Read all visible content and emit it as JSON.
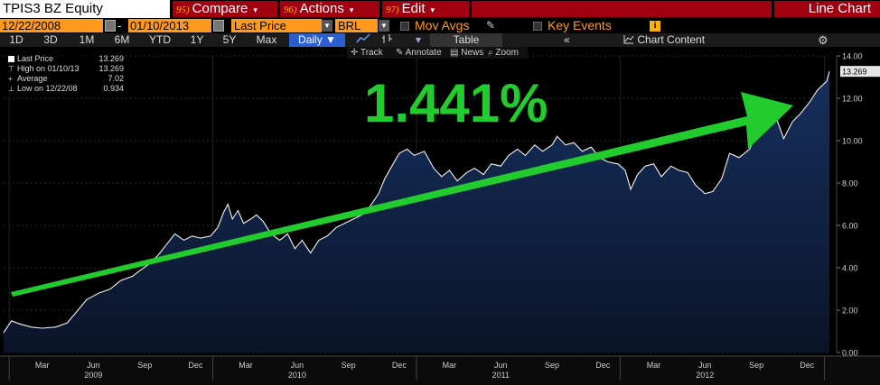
{
  "header": {
    "ticker": "TPIS3 BZ Equity",
    "menus": [
      {
        "num": "95)",
        "label": "Compare",
        "caret": "▾"
      },
      {
        "num": "96)",
        "label": "Actions",
        "caret": "▾"
      },
      {
        "num": "97)",
        "label": "Edit",
        "caret": "▾"
      }
    ],
    "view_title": "Line Chart"
  },
  "controls": {
    "start_date": "12/22/2008",
    "end_date": "01/10/2013",
    "date_separator": "-",
    "field": "Last Price",
    "currency": "BRL",
    "mov_avgs": "Mov Avgs",
    "key_events": "Key Events"
  },
  "toolbar": {
    "timeframes": [
      "1D",
      "3D",
      "1M",
      "6M",
      "YTD",
      "1Y",
      "5Y",
      "Max"
    ],
    "frequency": "Daily",
    "table_label": "Table",
    "chart_content_label": "Chart Content"
  },
  "chart_tools": [
    "Track",
    "Annotate",
    "News",
    "Zoom"
  ],
  "legend": [
    {
      "label": "Last Price",
      "value": "13.269"
    },
    {
      "label": "High on 01/10/13",
      "value": "13.269"
    },
    {
      "label": "Average",
      "value": "7.02"
    },
    {
      "label": "Low on 12/22/08",
      "value": "0.934"
    }
  ],
  "colors": {
    "line": "#f2f2f2",
    "area_top": "#16305e",
    "area_bottom": "#0a1428",
    "arrow": "#22cc2e",
    "annotation_text": "#22cc2e",
    "price_tag": "#e6e6e6"
  },
  "chart_data": {
    "type": "area",
    "title": "",
    "xlabel": "",
    "ylabel": "",
    "ylim": [
      0,
      14
    ],
    "y_ticks": [
      "0.00",
      "2.00",
      "4.00",
      "6.00",
      "8.00",
      "10.00",
      "12.00",
      "14.00"
    ],
    "x_range": [
      "2008-12-22",
      "2013-01-10"
    ],
    "x_ticks": [
      {
        "date": "2009-03-01",
        "label": "Mar"
      },
      {
        "date": "2009-06-01",
        "label": "Jun"
      },
      {
        "date": "2009-09-01",
        "label": "Sep"
      },
      {
        "date": "2009-12-01",
        "label": "Dec"
      },
      {
        "date": "2010-03-01",
        "label": "Mar"
      },
      {
        "date": "2010-06-01",
        "label": "Jun"
      },
      {
        "date": "2010-09-01",
        "label": "Sep"
      },
      {
        "date": "2010-12-01",
        "label": "Dec"
      },
      {
        "date": "2011-03-01",
        "label": "Mar"
      },
      {
        "date": "2011-06-01",
        "label": "Jun"
      },
      {
        "date": "2011-09-01",
        "label": "Sep"
      },
      {
        "date": "2011-12-01",
        "label": "Dec"
      },
      {
        "date": "2012-03-01",
        "label": "Mar"
      },
      {
        "date": "2012-06-01",
        "label": "Jun"
      },
      {
        "date": "2012-09-01",
        "label": "Sep"
      },
      {
        "date": "2012-12-01",
        "label": "Dec"
      }
    ],
    "year_labels": [
      {
        "date": "2009-06-01",
        "label": "2009"
      },
      {
        "date": "2010-06-01",
        "label": "2010"
      },
      {
        "date": "2011-06-01",
        "label": "2011"
      },
      {
        "date": "2012-06-01",
        "label": "2012"
      }
    ],
    "last_value_label": "13.269",
    "annotation": "1.441%",
    "grid": true,
    "series": [
      {
        "name": "Last Price",
        "points": [
          [
            "2008-12-22",
            0.93
          ],
          [
            "2009-01-05",
            1.5
          ],
          [
            "2009-01-20",
            1.35
          ],
          [
            "2009-02-10",
            1.2
          ],
          [
            "2009-03-01",
            1.15
          ],
          [
            "2009-03-25",
            1.2
          ],
          [
            "2009-04-15",
            1.4
          ],
          [
            "2009-05-01",
            1.9
          ],
          [
            "2009-05-20",
            2.5
          ],
          [
            "2009-06-10",
            2.8
          ],
          [
            "2009-07-01",
            3.0
          ],
          [
            "2009-07-20",
            3.4
          ],
          [
            "2009-08-10",
            3.6
          ],
          [
            "2009-08-25",
            3.9
          ],
          [
            "2009-09-10",
            4.2
          ],
          [
            "2009-09-25",
            4.6
          ],
          [
            "2009-10-10",
            5.1
          ],
          [
            "2009-10-25",
            5.6
          ],
          [
            "2009-11-10",
            5.3
          ],
          [
            "2009-11-25",
            5.5
          ],
          [
            "2009-12-10",
            5.4
          ],
          [
            "2009-12-28",
            5.5
          ],
          [
            "2010-01-10",
            5.9
          ],
          [
            "2010-01-20",
            6.6
          ],
          [
            "2010-01-28",
            7.0
          ],
          [
            "2010-02-05",
            6.3
          ],
          [
            "2010-02-15",
            6.7
          ],
          [
            "2010-02-25",
            6.1
          ],
          [
            "2010-03-10",
            6.3
          ],
          [
            "2010-03-20",
            6.5
          ],
          [
            "2010-04-01",
            6.2
          ],
          [
            "2010-04-15",
            5.6
          ],
          [
            "2010-05-01",
            5.3
          ],
          [
            "2010-05-15",
            5.6
          ],
          [
            "2010-05-28",
            4.9
          ],
          [
            "2010-06-10",
            5.3
          ],
          [
            "2010-06-25",
            4.7
          ],
          [
            "2010-07-10",
            5.3
          ],
          [
            "2010-07-25",
            5.5
          ],
          [
            "2010-08-10",
            5.9
          ],
          [
            "2010-08-25",
            6.1
          ],
          [
            "2010-09-10",
            6.3
          ],
          [
            "2010-09-25",
            6.5
          ],
          [
            "2010-10-10",
            6.9
          ],
          [
            "2010-10-25",
            7.5
          ],
          [
            "2010-11-05",
            8.2
          ],
          [
            "2010-11-20",
            8.9
          ],
          [
            "2010-12-01",
            9.4
          ],
          [
            "2010-12-15",
            9.6
          ],
          [
            "2010-12-28",
            9.3
          ],
          [
            "2011-01-15",
            9.5
          ],
          [
            "2011-02-01",
            8.7
          ],
          [
            "2011-02-15",
            8.3
          ],
          [
            "2011-03-01",
            8.6
          ],
          [
            "2011-03-15",
            8.1
          ],
          [
            "2011-04-01",
            8.5
          ],
          [
            "2011-04-15",
            8.7
          ],
          [
            "2011-05-01",
            8.4
          ],
          [
            "2011-05-15",
            8.9
          ],
          [
            "2011-06-01",
            8.8
          ],
          [
            "2011-06-15",
            9.3
          ],
          [
            "2011-07-01",
            9.6
          ],
          [
            "2011-07-15",
            9.3
          ],
          [
            "2011-08-01",
            9.8
          ],
          [
            "2011-08-15",
            9.5
          ],
          [
            "2011-09-01",
            9.8
          ],
          [
            "2011-09-10",
            10.2
          ],
          [
            "2011-09-25",
            9.8
          ],
          [
            "2011-10-10",
            9.9
          ],
          [
            "2011-10-25",
            9.5
          ],
          [
            "2011-11-10",
            9.7
          ],
          [
            "2011-11-25",
            9.2
          ],
          [
            "2011-12-10",
            9.0
          ],
          [
            "2011-12-28",
            8.9
          ],
          [
            "2012-01-10",
            8.6
          ],
          [
            "2012-01-20",
            7.7
          ],
          [
            "2012-02-01",
            8.4
          ],
          [
            "2012-02-15",
            8.8
          ],
          [
            "2012-03-01",
            8.9
          ],
          [
            "2012-03-15",
            8.3
          ],
          [
            "2012-04-01",
            8.8
          ],
          [
            "2012-04-15",
            8.6
          ],
          [
            "2012-05-01",
            8.5
          ],
          [
            "2012-05-15",
            7.9
          ],
          [
            "2012-06-01",
            7.5
          ],
          [
            "2012-06-15",
            7.6
          ],
          [
            "2012-07-01",
            8.2
          ],
          [
            "2012-07-15",
            9.4
          ],
          [
            "2012-08-01",
            9.2
          ],
          [
            "2012-08-20",
            9.6
          ],
          [
            "2012-09-05",
            10.6
          ],
          [
            "2012-09-20",
            10.8
          ],
          [
            "2012-10-05",
            11.2
          ],
          [
            "2012-10-20",
            10.1
          ],
          [
            "2012-11-05",
            10.9
          ],
          [
            "2012-11-20",
            11.3
          ],
          [
            "2012-12-05",
            11.8
          ],
          [
            "2012-12-20",
            12.4
          ],
          [
            "2013-01-05",
            12.8
          ],
          [
            "2013-01-10",
            13.27
          ]
        ]
      }
    ]
  }
}
